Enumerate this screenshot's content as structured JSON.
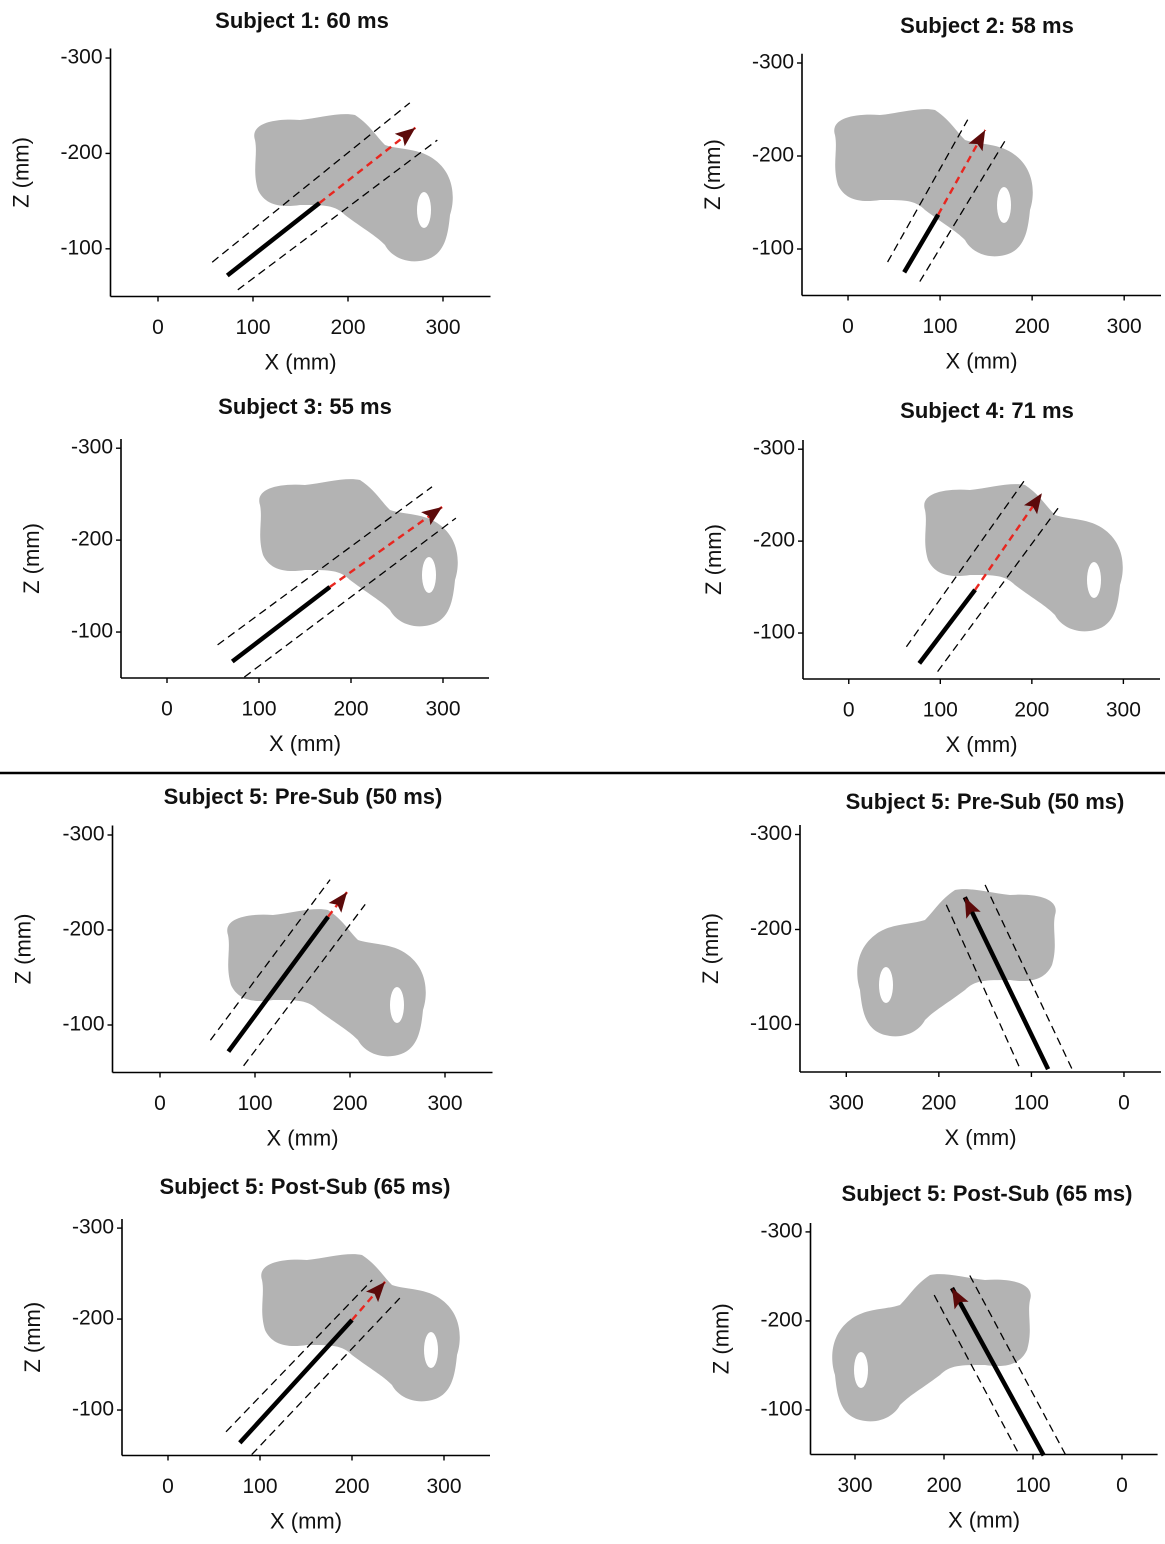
{
  "chart_data": [
    {
      "type": "trajectory",
      "title": "Subject 1: 60 ms",
      "xlabel": "X (mm)",
      "ylabel": "Z (mm)",
      "xlim": [
        -50,
        350
      ],
      "ylim": [
        -50,
        -310
      ],
      "xticks": [
        0,
        100,
        200,
        300
      ],
      "yticks": [
        -300,
        -200,
        -100
      ],
      "series": [
        {
          "style": "thin-dashed",
          "color": "#000000",
          "x": [
            57,
            265
          ],
          "values": [
            -86,
            -253
          ]
        },
        {
          "style": "thin-dashed",
          "color": "#000000",
          "x": [
            84,
            294
          ],
          "values": [
            -57,
            -214
          ]
        },
        {
          "style": "dashed",
          "color": "#e8261f",
          "x": [
            170,
            271
          ],
          "values": [
            -148,
            -227
          ],
          "arrowhead_color": "#5c0a0a"
        },
        {
          "style": "thick",
          "color": "#000000",
          "x": [
            73,
            170
          ],
          "values": [
            -72,
            -148
          ]
        }
      ]
    },
    {
      "type": "trajectory",
      "title": "Subject 2: 58 ms",
      "xlabel": "X (mm)",
      "ylabel": "Z (mm)",
      "xlim": [
        -50,
        340
      ],
      "ylim": [
        -50,
        -310
      ],
      "xticks": [
        0,
        100,
        200,
        300
      ],
      "yticks": [
        -300,
        -200,
        -100
      ],
      "series": [
        {
          "style": "thin-dashed",
          "color": "#000000",
          "x": [
            43,
            130
          ],
          "values": [
            -86,
            -239
          ]
        },
        {
          "style": "thin-dashed",
          "color": "#000000",
          "x": [
            78,
            171
          ],
          "values": [
            -65,
            -217
          ]
        },
        {
          "style": "dashed",
          "color": "#e8261f",
          "x": [
            98,
            149
          ],
          "values": [
            -137,
            -228
          ],
          "arrowhead_color": "#5c0a0a"
        },
        {
          "style": "thick",
          "color": "#000000",
          "x": [
            61,
            98
          ],
          "values": [
            -75,
            -137
          ]
        }
      ]
    },
    {
      "type": "trajectory",
      "title": "Subject 3: 55 ms",
      "xlabel": "X (mm)",
      "ylabel": "Z (mm)",
      "xlim": [
        -50,
        350
      ],
      "ylim": [
        -50,
        -310
      ],
      "xticks": [
        0,
        100,
        200,
        300
      ],
      "yticks": [
        -300,
        -200,
        -100
      ],
      "series": [
        {
          "style": "thin-dashed",
          "color": "#000000",
          "x": [
            55,
            288
          ],
          "values": [
            -86,
            -258
          ]
        },
        {
          "style": "thin-dashed",
          "color": "#000000",
          "x": [
            84,
            314
          ],
          "values": [
            -51,
            -224
          ]
        },
        {
          "style": "dashed",
          "color": "#e8261f",
          "x": [
            177,
            299
          ],
          "values": [
            -149,
            -236
          ],
          "arrowhead_color": "#5c0a0a"
        },
        {
          "style": "thick",
          "color": "#000000",
          "x": [
            71,
            177
          ],
          "values": [
            -68,
            -149
          ]
        }
      ]
    },
    {
      "type": "trajectory",
      "title": "Subject 4: 71 ms",
      "xlabel": "X (mm)",
      "ylabel": "Z (mm)",
      "xlim": [
        -50,
        340
      ],
      "ylim": [
        -50,
        -310
      ],
      "xticks": [
        0,
        100,
        200,
        300
      ],
      "yticks": [
        -300,
        -200,
        -100
      ],
      "series": [
        {
          "style": "thin-dashed",
          "color": "#000000",
          "x": [
            63,
            192
          ],
          "values": [
            -85,
            -266
          ]
        },
        {
          "style": "thin-dashed",
          "color": "#000000",
          "x": [
            97,
            231
          ],
          "values": [
            -58,
            -239
          ]
        },
        {
          "style": "dashed",
          "color": "#e8261f",
          "x": [
            138,
            211
          ],
          "values": [
            -147,
            -252
          ],
          "arrowhead_color": "#5c0a0a"
        },
        {
          "style": "thick",
          "color": "#000000",
          "x": [
            77,
            138
          ],
          "values": [
            -67,
            -147
          ]
        }
      ]
    },
    {
      "type": "trajectory",
      "title": "Subject 5: Pre-Sub (50 ms)",
      "xlabel": "X (mm)",
      "ylabel": "Z (mm)",
      "xlim": [
        -50,
        350
      ],
      "ylim": [
        -50,
        -310
      ],
      "xticks": [
        0,
        100,
        200,
        300
      ],
      "yticks": [
        -300,
        -200,
        -100
      ],
      "series": [
        {
          "style": "thin-dashed",
          "color": "#000000",
          "x": [
            53,
            179
          ],
          "values": [
            -84,
            -253
          ]
        },
        {
          "style": "thin-dashed",
          "color": "#000000",
          "x": [
            88,
            216
          ],
          "values": [
            -57,
            -227
          ]
        },
        {
          "style": "dashed",
          "color": "#e8261f",
          "x": [
            177,
            197
          ],
          "values": [
            -214,
            -240
          ],
          "arrowhead_color": "#5c0a0a"
        },
        {
          "style": "thick",
          "color": "#000000",
          "x": [
            72,
            177
          ],
          "values": [
            -72,
            -214
          ]
        }
      ]
    },
    {
      "type": "trajectory",
      "title": "Subject 5: Pre-Sub (50 ms)",
      "xlabel": "X (mm)",
      "ylabel": "Z (mm)",
      "xlim": [
        350,
        -40
      ],
      "ylim": [
        -50,
        -310
      ],
      "xticks": [
        300,
        200,
        100,
        0
      ],
      "yticks": [
        -300,
        -200,
        -100
      ],
      "series": [
        {
          "style": "thin-dashed",
          "color": "#000000",
          "x": [
            192,
            112
          ],
          "values": [
            -226,
            -53
          ]
        },
        {
          "style": "thin-dashed",
          "color": "#000000",
          "x": [
            150,
            56
          ],
          "values": [
            -247,
            -53
          ]
        },
        {
          "style": "thick",
          "color": "#000000",
          "x": [
            82,
            172
          ],
          "values": [
            -53,
            -234
          ],
          "arrowhead_color": "#5c0a0a"
        }
      ]
    },
    {
      "type": "trajectory",
      "title": "Subject 5: Post-Sub (65 ms)",
      "xlabel": "X (mm)",
      "ylabel": "Z (mm)",
      "xlim": [
        -50,
        350
      ],
      "ylim": [
        -50,
        -310
      ],
      "xticks": [
        0,
        100,
        200,
        300
      ],
      "yticks": [
        -300,
        -200,
        -100
      ],
      "series": [
        {
          "style": "thin-dashed",
          "color": "#000000",
          "x": [
            63,
            222
          ],
          "values": [
            -76,
            -243
          ]
        },
        {
          "style": "thin-dashed",
          "color": "#000000",
          "x": [
            91,
            252
          ],
          "values": [
            -51,
            -223
          ]
        },
        {
          "style": "dashed",
          "color": "#e8261f",
          "x": [
            200,
            236
          ],
          "values": [
            -199,
            -241
          ],
          "arrowhead_color": "#5c0a0a"
        },
        {
          "style": "thick",
          "color": "#000000",
          "x": [
            78,
            200
          ],
          "values": [
            -64,
            -199
          ]
        }
      ]
    },
    {
      "type": "trajectory",
      "title": "Subject 5: Post-Sub (65 ms)",
      "xlabel": "X (mm)",
      "ylabel": "Z (mm)",
      "xlim": [
        350,
        -40
      ],
      "ylim": [
        -50,
        -310
      ],
      "xticks": [
        300,
        200,
        100,
        0
      ],
      "yticks": [
        -300,
        -200,
        -100
      ],
      "series": [
        {
          "style": "thin-dashed",
          "color": "#000000",
          "x": [
            211,
            115
          ],
          "values": [
            -229,
            -49
          ]
        },
        {
          "style": "thin-dashed",
          "color": "#000000",
          "x": [
            171,
            63
          ],
          "values": [
            -251,
            -49
          ]
        },
        {
          "style": "thick",
          "color": "#000000",
          "x": [
            88,
            191
          ],
          "values": [
            -49,
            -237
          ],
          "arrowhead_color": "#5c0a0a"
        }
      ]
    }
  ]
}
